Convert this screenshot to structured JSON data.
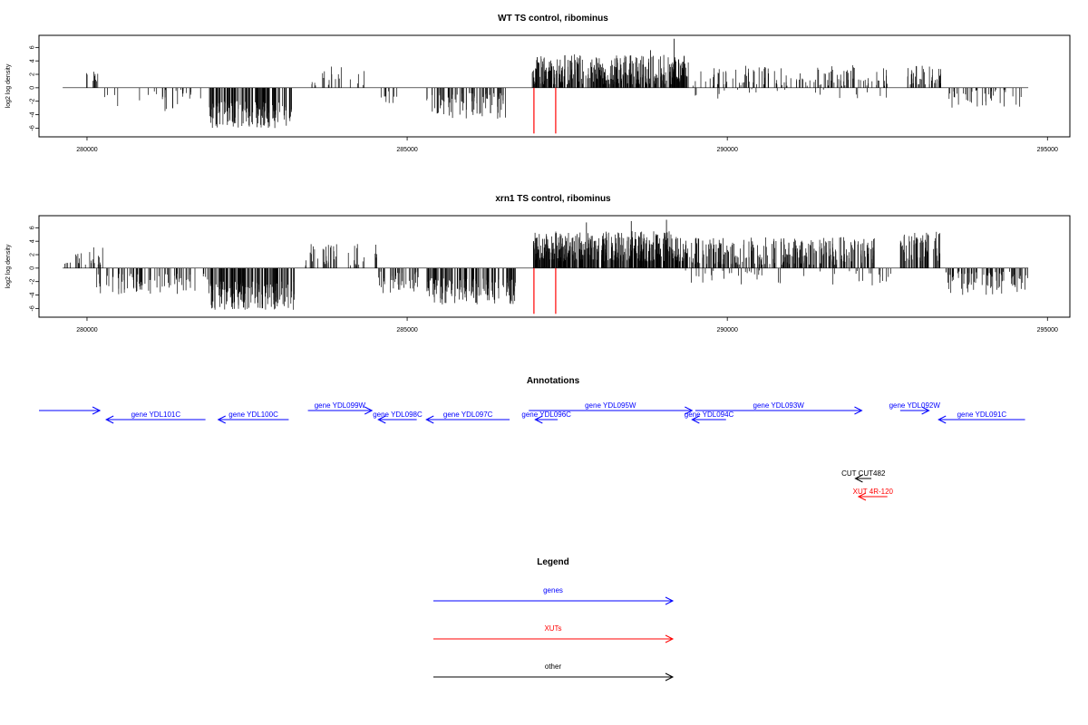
{
  "chart_data": [
    {
      "type": "bar",
      "title": "WT TS control, ribominus",
      "ylabel": "log2 log density",
      "xlim": [
        279250,
        295350
      ],
      "ylim": [
        -7.3,
        7.8
      ],
      "xticks": [
        280000,
        285000,
        290000,
        295000
      ],
      "yticks": [
        -6,
        -4,
        -2,
        0,
        2,
        4,
        6
      ],
      "segments": [
        {
          "start": 279950,
          "end": 280200,
          "sign": 1,
          "lo": 0.8,
          "hi": 2.4,
          "n": 10
        },
        {
          "start": 280250,
          "end": 280500,
          "sign": -1,
          "lo": 0.3,
          "hi": 3.2,
          "n": 4
        },
        {
          "start": 280800,
          "end": 281800,
          "sign": -1,
          "lo": 0.3,
          "hi": 3.7,
          "n": 24
        },
        {
          "start": 281900,
          "end": 283200,
          "sign": -1,
          "lo": 2.0,
          "hi": 6.0,
          "n": 150
        },
        {
          "start": 283500,
          "end": 284400,
          "sign": 1,
          "lo": 0.3,
          "hi": 3.3,
          "n": 20
        },
        {
          "start": 284550,
          "end": 284850,
          "sign": -1,
          "lo": 0.5,
          "hi": 2.6,
          "n": 10
        },
        {
          "start": 285300,
          "end": 286550,
          "sign": -1,
          "lo": 0.8,
          "hi": 4.6,
          "n": 80
        },
        {
          "start": 286950,
          "end": 289400,
          "sign": 1,
          "lo": 0.5,
          "hi": 5.0,
          "n": 380
        },
        {
          "start": 289450,
          "end": 292500,
          "sign": 1,
          "lo": 0.3,
          "hi": 3.4,
          "n": 120
        },
        {
          "start": 289300,
          "end": 292600,
          "sign": -1,
          "lo": 0.2,
          "hi": 1.6,
          "n": 20
        },
        {
          "start": 292800,
          "end": 293350,
          "sign": 1,
          "lo": 0.5,
          "hi": 3.4,
          "n": 40
        },
        {
          "start": 293450,
          "end": 294650,
          "sign": -1,
          "lo": 0.3,
          "hi": 3.0,
          "n": 40
        }
      ],
      "peaks": [
        {
          "x": 289170,
          "y": 7.3
        },
        {
          "x": 287700,
          "y": 4.8
        },
        {
          "x": 288800,
          "y": 5.6
        }
      ],
      "red_lines": [
        {
          "x": 286980,
          "y0": 0,
          "y1": -6.8
        },
        {
          "x": 287320,
          "y0": 0,
          "y1": -6.8
        }
      ]
    },
    {
      "type": "bar",
      "title": "xrn1 TS control, ribominus",
      "ylabel": "log2 log density",
      "xlim": [
        279250,
        295350
      ],
      "ylim": [
        -7.3,
        7.8
      ],
      "xticks": [
        280000,
        285000,
        290000,
        295000
      ],
      "yticks": [
        -6,
        -4,
        -2,
        0,
        2,
        4,
        6
      ],
      "segments": [
        {
          "start": 279600,
          "end": 279750,
          "sign": 1,
          "lo": 0.3,
          "hi": 1.0,
          "n": 4
        },
        {
          "start": 279800,
          "end": 280250,
          "sign": 1,
          "lo": 0.5,
          "hi": 3.3,
          "n": 20
        },
        {
          "start": 280150,
          "end": 281900,
          "sign": -1,
          "lo": 0.8,
          "hi": 3.9,
          "n": 80
        },
        {
          "start": 281900,
          "end": 283250,
          "sign": -1,
          "lo": 2.0,
          "hi": 6.2,
          "n": 170
        },
        {
          "start": 283400,
          "end": 284550,
          "sign": 1,
          "lo": 0.4,
          "hi": 3.6,
          "n": 45
        },
        {
          "start": 284550,
          "end": 285200,
          "sign": -1,
          "lo": 0.5,
          "hi": 4.0,
          "n": 40
        },
        {
          "start": 285300,
          "end": 286700,
          "sign": -1,
          "lo": 1.5,
          "hi": 5.4,
          "n": 140
        },
        {
          "start": 286950,
          "end": 289400,
          "sign": 1,
          "lo": 1.0,
          "hi": 5.5,
          "n": 450
        },
        {
          "start": 289400,
          "end": 292300,
          "sign": 1,
          "lo": 0.5,
          "hi": 4.6,
          "n": 280
        },
        {
          "start": 289300,
          "end": 292400,
          "sign": -1,
          "lo": 0.3,
          "hi": 2.6,
          "n": 40
        },
        {
          "start": 292300,
          "end": 292700,
          "sign": -1,
          "lo": 0.2,
          "hi": 2.0,
          "n": 6
        },
        {
          "start": 292700,
          "end": 293350,
          "sign": 1,
          "lo": 1.0,
          "hi": 5.5,
          "n": 70
        },
        {
          "start": 293400,
          "end": 294700,
          "sign": -1,
          "lo": 0.5,
          "hi": 4.0,
          "n": 80
        }
      ],
      "peaks": [
        {
          "x": 289050,
          "y": 7.2
        },
        {
          "x": 288500,
          "y": 7.0
        },
        {
          "x": 287800,
          "y": 6.8
        }
      ],
      "red_lines": [
        {
          "x": 286980,
          "y0": 0,
          "y1": -6.8
        },
        {
          "x": 287320,
          "y0": 0,
          "y1": -6.8
        }
      ]
    }
  ],
  "annotations": {
    "title": "Annotations",
    "features": [
      {
        "label": "",
        "start": 279250,
        "end": 280200,
        "strand": "+",
        "color": "#0000ff",
        "track": 1
      },
      {
        "label": "gene YDL101C",
        "start": 280300,
        "end": 281850,
        "strand": "-",
        "color": "#0000ff",
        "track": 0
      },
      {
        "label": "gene YDL100C",
        "start": 282050,
        "end": 283150,
        "strand": "-",
        "color": "#0000ff",
        "track": 0
      },
      {
        "label": "gene YDL099W",
        "start": 283450,
        "end": 284450,
        "strand": "+",
        "color": "#0000ff",
        "track": 1
      },
      {
        "label": "gene YDL098C",
        "start": 284550,
        "end": 285150,
        "strand": "-",
        "color": "#0000ff",
        "track": 0
      },
      {
        "label": "gene YDL097C",
        "start": 285300,
        "end": 286600,
        "strand": "-",
        "color": "#0000ff",
        "track": 0
      },
      {
        "label": "gene YDL096C",
        "start": 287000,
        "end": 287350,
        "strand": "-",
        "color": "#0000ff",
        "track": 0
      },
      {
        "label": "gene YDL095W",
        "start": 286900,
        "end": 289450,
        "strand": "+",
        "color": "#0000ff",
        "track": 1
      },
      {
        "label": "gene YDL094C",
        "start": 289450,
        "end": 289980,
        "strand": "-",
        "color": "#0000ff",
        "track": 0
      },
      {
        "label": "gene YDL093W",
        "start": 289500,
        "end": 292100,
        "strand": "+",
        "color": "#0000ff",
        "track": 1
      },
      {
        "label": "gene YDL092W",
        "start": 292700,
        "end": 293150,
        "strand": "+",
        "color": "#0000ff",
        "track": 1
      },
      {
        "label": "gene YDL091C",
        "start": 293300,
        "end": 294650,
        "strand": "-",
        "color": "#0000ff",
        "track": 0
      },
      {
        "label": "CUT CUT482",
        "start": 292000,
        "end": 292250,
        "strand": "-",
        "color": "#000000",
        "track": 2
      },
      {
        "label": "XUT 4R-120",
        "start": 292050,
        "end": 292500,
        "strand": "-",
        "color": "#ff0000",
        "track": 3
      }
    ]
  },
  "legend": {
    "title": "Legend",
    "items": [
      {
        "label": "genes",
        "color": "#0000ff"
      },
      {
        "label": "XUTs",
        "color": "#ff0000"
      },
      {
        "label": "other",
        "color": "#000000"
      }
    ]
  }
}
